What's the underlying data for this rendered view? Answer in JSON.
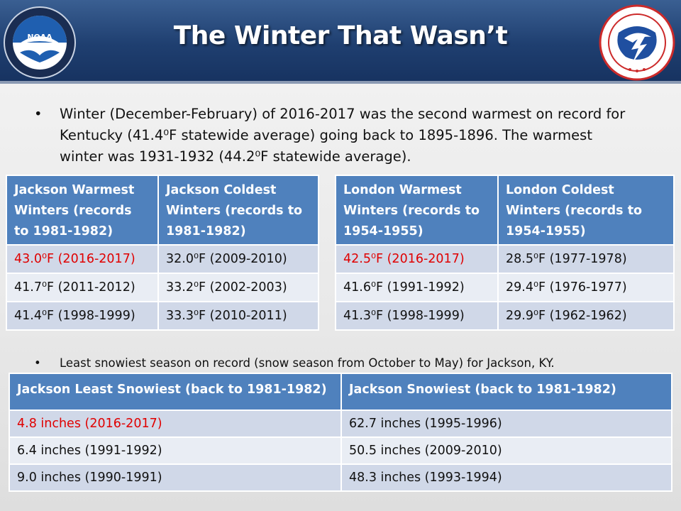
{
  "header": {
    "title": "The Winter That Wasn’t",
    "left_logo": {
      "icon": "noaa-seal-icon",
      "text": "NOAA"
    },
    "right_logo": {
      "icon": "nws-seal-icon"
    }
  },
  "bullets": [
    "Winter (December-February) of 2016-2017 was the second warmest on record for Kentucky (41.4⁰F statewide average) going back to 1895-1896. The warmest winter was 1931-1932 (44.2⁰F statewide average).",
    "Least snowiest season on record (snow season from October to May) for Jackson, KY."
  ],
  "colors": {
    "header_blue": "#4f81bd",
    "highlight_red": "#e00000",
    "banner": "#1f3f70"
  },
  "jackson_table": {
    "headers": [
      "Jackson Warmest Winters (records to 1981-1982)",
      "Jackson Coldest Winters (records to 1981-1982)"
    ],
    "rows": [
      [
        "43.0⁰F (2016-2017)",
        "32.0⁰F (2009-2010)"
      ],
      [
        "41.7⁰F (2011-2012)",
        "33.2⁰F (2002-2003)"
      ],
      [
        "41.4⁰F (1998-1999)",
        "33.3⁰F (2010-2011)"
      ]
    ]
  },
  "london_table": {
    "headers": [
      "London Warmest Winters (records to 1954-1955)",
      "London Coldest Winters (records to 1954-1955)"
    ],
    "rows": [
      [
        "42.5⁰F (2016-2017)",
        "28.5⁰F (1977-1978)"
      ],
      [
        "41.6⁰F (1991-1992)",
        "29.4⁰F (1976-1977)"
      ],
      [
        "41.3⁰F (1998-1999)",
        "29.9⁰F (1962-1962)"
      ]
    ]
  },
  "snow_table": {
    "headers": [
      "Jackson Least Snowiest (back to 1981-1982)",
      "Jackson Snowiest (back to 1981-1982)"
    ],
    "rows": [
      [
        "4.8 inches (2016-2017)",
        "62.7 inches (1995-1996)"
      ],
      [
        "6.4 inches (1991-1992)",
        "50.5 inches (2009-2010)"
      ],
      [
        "9.0 inches (1990-1991)",
        "48.3 inches (1993-1994)"
      ]
    ]
  }
}
